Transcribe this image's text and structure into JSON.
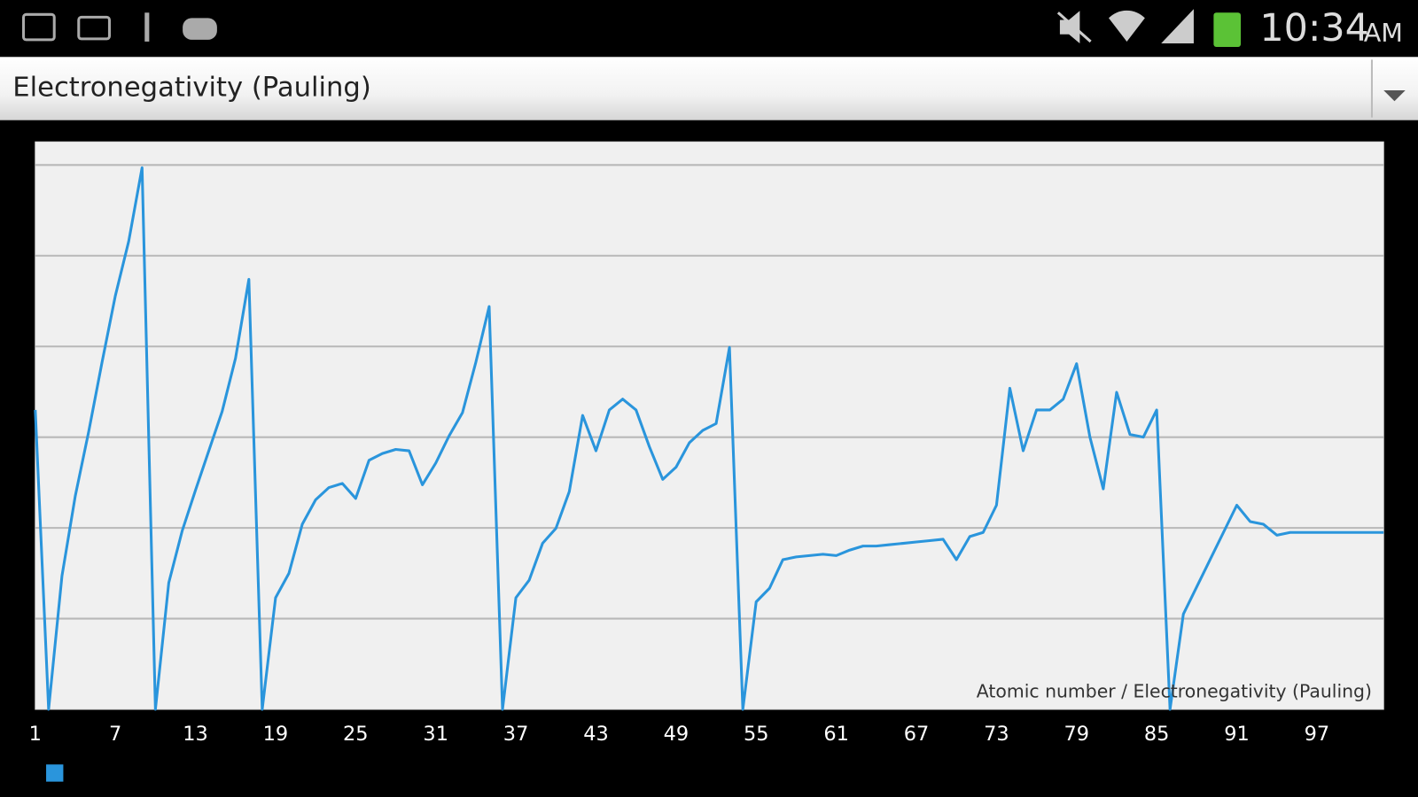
{
  "status_bar": {
    "time": "10:34",
    "am_pm": "AM"
  },
  "spinner": {
    "selected": "Electronegativity (Pauling)"
  },
  "chart_data": {
    "type": "line",
    "annotation": "Atomic number / Electronegativity (Pauling)",
    "x": [
      1,
      2,
      3,
      4,
      5,
      6,
      7,
      8,
      9,
      10,
      11,
      12,
      13,
      14,
      15,
      16,
      17,
      18,
      19,
      20,
      21,
      22,
      23,
      24,
      25,
      26,
      27,
      28,
      29,
      30,
      31,
      32,
      33,
      34,
      35,
      36,
      37,
      38,
      39,
      40,
      41,
      42,
      43,
      44,
      45,
      46,
      47,
      48,
      49,
      50,
      51,
      52,
      53,
      54,
      55,
      56,
      57,
      58,
      59,
      60,
      61,
      62,
      63,
      64,
      65,
      66,
      67,
      68,
      69,
      70,
      71,
      72,
      73,
      74,
      75,
      76,
      77,
      78,
      79,
      80,
      81,
      82,
      83,
      84,
      85,
      86,
      87,
      88,
      89,
      90,
      91,
      92,
      93,
      94,
      95,
      96,
      97,
      98,
      99,
      100,
      101,
      102
    ],
    "series": [
      {
        "color": "#2a95dc",
        "values": [
          2.2,
          0,
          0.98,
          1.57,
          2.04,
          2.55,
          3.04,
          3.44,
          3.98,
          0,
          0.93,
          1.31,
          1.61,
          1.9,
          2.19,
          2.58,
          3.16,
          0,
          0.82,
          1.0,
          1.36,
          1.54,
          1.63,
          1.66,
          1.55,
          1.83,
          1.88,
          1.91,
          1.9,
          1.65,
          1.81,
          2.01,
          2.18,
          2.55,
          2.96,
          0,
          0.82,
          0.95,
          1.22,
          1.33,
          1.6,
          2.16,
          1.9,
          2.2,
          2.28,
          2.2,
          1.93,
          1.69,
          1.78,
          1.96,
          2.05,
          2.1,
          2.66,
          0,
          0.79,
          0.89,
          1.1,
          1.12,
          1.13,
          1.14,
          1.13,
          1.17,
          1.2,
          1.2,
          1.21,
          1.22,
          1.23,
          1.24,
          1.25,
          1.1,
          1.27,
          1.3,
          1.5,
          2.36,
          1.9,
          2.2,
          2.2,
          2.28,
          2.54,
          2.0,
          1.62,
          2.33,
          2.02,
          2.0,
          2.2,
          0,
          0.7,
          0.9,
          1.1,
          1.3,
          1.5,
          1.38,
          1.36,
          1.28,
          1.3,
          1.3,
          1.3,
          1.3,
          1.3,
          1.3,
          1.3,
          1.3
        ]
      }
    ],
    "xlim": [
      1,
      102
    ],
    "xticks": [
      1,
      7,
      13,
      19,
      25,
      31,
      37,
      43,
      49,
      55,
      61,
      67,
      73,
      79,
      85,
      91,
      97
    ],
    "ylim": [
      0,
      4.17
    ],
    "yticks": [
      0.6667,
      1.3333,
      2,
      2.6667,
      3.3333,
      4
    ],
    "grid": true
  }
}
